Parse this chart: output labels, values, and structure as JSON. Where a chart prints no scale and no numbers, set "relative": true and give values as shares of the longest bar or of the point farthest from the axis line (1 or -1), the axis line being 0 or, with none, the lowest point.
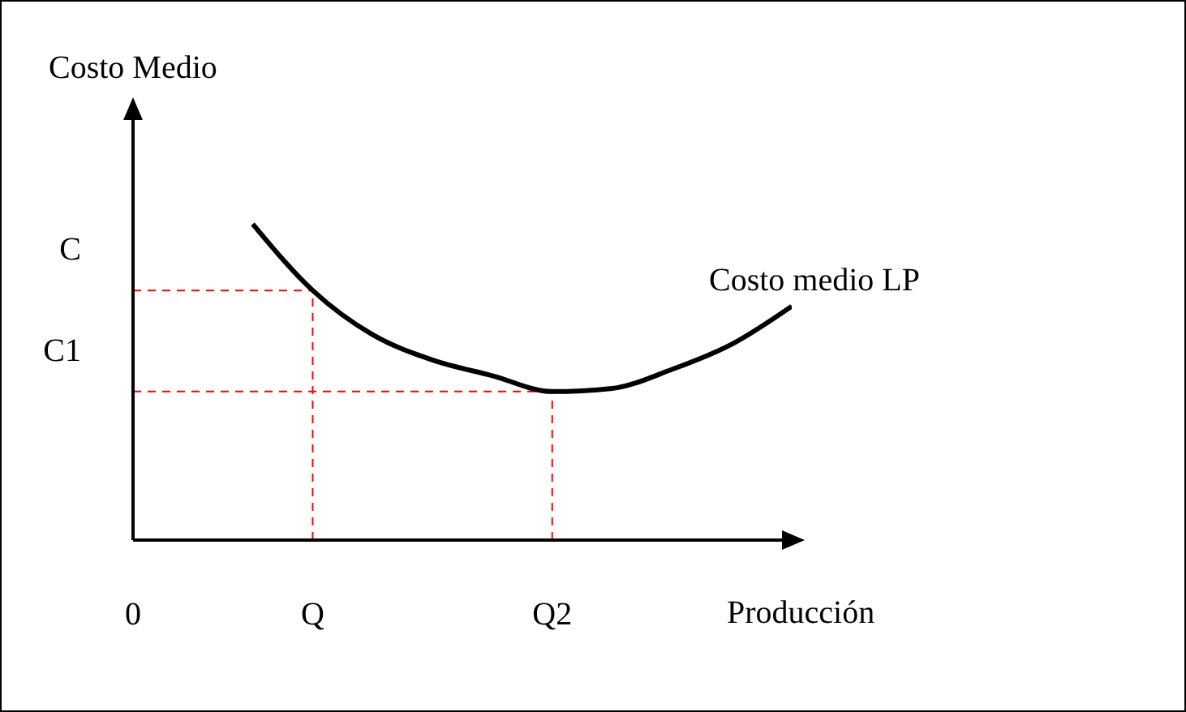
{
  "chart_data": {
    "type": "line",
    "relative": true,
    "ylabel": "Costo Medio",
    "xlabel": "Producción",
    "categories": [
      "0",
      null,
      null,
      "Q",
      null,
      null,
      null,
      "Q2",
      null,
      null,
      null,
      null
    ],
    "series": [
      {
        "name": "Costo medio LP",
        "color": "#000000",
        "values": [
          null,
          null,
          1,
          0.79,
          0.65,
          0.57,
          0.52,
          0.47,
          0.48,
          0.54,
          0.62,
          0.74
        ]
      }
    ],
    "ref_lines": [
      {
        "axis": "y",
        "value": 0.79,
        "label": "C",
        "color": "#ff0000",
        "line_style": "dashed"
      },
      {
        "axis": "y",
        "value": 0.47,
        "label": "C1",
        "color": "#ff0000",
        "line_style": "dashed"
      },
      {
        "axis": "x",
        "value": "Q",
        "label": null,
        "color": "#ff0000",
        "line_style": "dashed"
      },
      {
        "axis": "x",
        "value": "Q2",
        "label": null,
        "color": "#ff0000",
        "line_style": "dashed"
      }
    ],
    "grid": false,
    "legend": false,
    "marker": "none",
    "line_style": "solid"
  }
}
